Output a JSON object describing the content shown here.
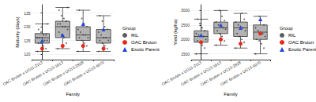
{
  "chart_data": [
    {
      "type": "boxplot",
      "x_label": "Family",
      "y_label": "Maturity (days)",
      "categories": [
        "OAC Bruton x UG11-2113",
        "OAC Bruton x UG13-1613",
        "OAC Bruton x UG13-2828",
        "OAC Bruton x UG13-4970"
      ],
      "ylim": [
        118,
        138
      ],
      "yticks": [
        120,
        125,
        130,
        135
      ],
      "grid": true,
      "color": "#b3b3b3",
      "legend": "right",
      "legend_title": "Group",
      "boxes": [
        [
          121,
          124,
          126,
          127.5,
          131
        ],
        [
          122,
          126,
          130,
          132,
          137
        ],
        [
          121,
          125,
          127,
          130,
          136
        ],
        [
          121,
          124,
          126,
          129,
          134
        ]
      ],
      "series": [
        {
          "name": "RIL",
          "type": "scatter",
          "color": "#333333",
          "marker": "circle",
          "values": [
            [
              121,
              122,
              123,
              124,
              124,
              125,
              125,
              126,
              126,
              126,
              127,
              127,
              128,
              129,
              131
            ],
            [
              122,
              124,
              126,
              127,
              128,
              129,
              130,
              130,
              131,
              131,
              132,
              133,
              134,
              136,
              137
            ],
            [
              121,
              123,
              124,
              125,
              126,
              126,
              127,
              127,
              128,
              129,
              130,
              131,
              133,
              136
            ],
            [
              121,
              122,
              123,
              124,
              125,
              125,
              126,
              126,
              127,
              128,
              129,
              130,
              132,
              134
            ]
          ]
        },
        {
          "name": "OAC Bruton",
          "type": "scatter",
          "color": "#e8291c",
          "marker": "circle",
          "values": [
            122,
            123,
            123,
            122
          ]
        },
        {
          "name": "Exotic Parent",
          "type": "scatter",
          "color": "#2346e0",
          "marker": "triangle",
          "values": [
            125,
            127,
            131,
            129
          ]
        }
      ]
    },
    {
      "type": "boxplot",
      "x_label": "Family",
      "y_label": "Yield (kg/ha)",
      "categories": [
        "OAC Bruton x UG11-2113",
        "OAC Bruton x UG13-1613",
        "OAC Bruton x UG13-2828",
        "OAC Bruton x UG13-4970"
      ],
      "ylim": [
        1300,
        3200
      ],
      "yticks": [
        1500,
        2000,
        2500,
        3000
      ],
      "grid": true,
      "color": "#b3b3b3",
      "legend": "right",
      "legend_title": "Group",
      "boxes": [
        [
          1500,
          1900,
          2100,
          2300,
          2700
        ],
        [
          1800,
          2200,
          2400,
          2600,
          3000
        ],
        [
          1700,
          2100,
          2400,
          2600,
          2900
        ],
        [
          1500,
          2000,
          2250,
          2500,
          2800
        ]
      ],
      "series": [
        {
          "name": "RIL",
          "type": "scatter",
          "color": "#333333",
          "marker": "circle",
          "values": [
            [
              1500,
              1700,
              1800,
              1900,
              1950,
              2000,
              2100,
              2100,
              2150,
              2200,
              2300,
              2400,
              2550,
              2700
            ],
            [
              1800,
              1950,
              2100,
              2200,
              2300,
              2350,
              2400,
              2450,
              2500,
              2600,
              2650,
              2800,
              3000
            ],
            [
              1700,
              1900,
              2000,
              2100,
              2200,
              2300,
              2400,
              2450,
              2500,
              2600,
              2700,
              2900
            ],
            [
              1500,
              1700,
              1850,
              1950,
              2000,
              2100,
              2200,
              2250,
              2300,
              2400,
              2500,
              2650,
              2800
            ]
          ]
        },
        {
          "name": "OAC Bruton",
          "type": "scatter",
          "color": "#e8291c",
          "marker": "circle",
          "values": [
            1900,
            2000,
            1850,
            2200
          ]
        },
        {
          "name": "Exotic Parent",
          "type": "scatter",
          "color": "#2346e0",
          "marker": "triangle",
          "values": [
            2150,
            2500,
            2400,
            2700
          ]
        }
      ]
    }
  ]
}
